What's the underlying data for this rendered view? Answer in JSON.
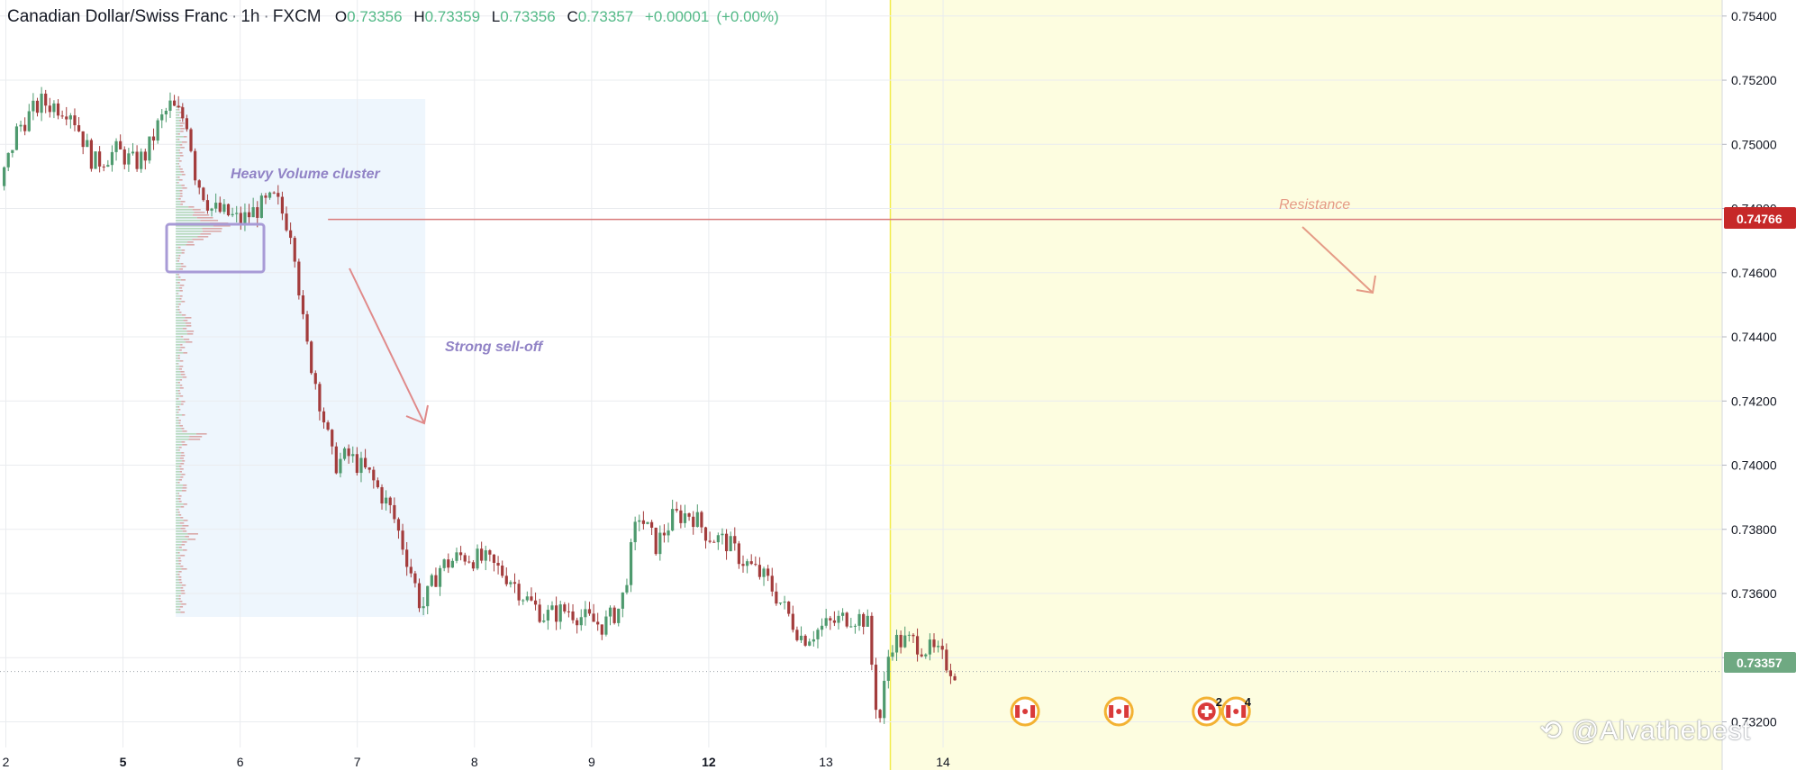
{
  "header": {
    "symbol": "Canadian Dollar/Swiss Franc",
    "interval": "1h",
    "exchange": "FXCM",
    "open_label": "O",
    "open": "0.73356",
    "high_label": "H",
    "high": "0.73359",
    "low_label": "L",
    "low": "0.73356",
    "close_label": "C",
    "close": "0.73357",
    "change": "+0.00001",
    "change_pct": "(+0.00%)"
  },
  "price_axis": {
    "ticks": [
      "0.75400",
      "0.75200",
      "0.75000",
      "0.74800",
      "0.74600",
      "0.74400",
      "0.74200",
      "0.74000",
      "0.73800",
      "0.73600",
      "0.73400",
      "0.73200"
    ],
    "resistance_badge": "0.74766",
    "last_badge": "0.73357"
  },
  "time_axis": {
    "ticks": [
      {
        "label": "2",
        "bold": false
      },
      {
        "label": "5",
        "bold": true
      },
      {
        "label": "6",
        "bold": false
      },
      {
        "label": "7",
        "bold": false
      },
      {
        "label": "8",
        "bold": false
      },
      {
        "label": "9",
        "bold": false
      },
      {
        "label": "12",
        "bold": true
      },
      {
        "label": "13",
        "bold": false
      },
      {
        "label": "14",
        "bold": false
      }
    ]
  },
  "annotations": {
    "volume_cluster": "Heavy Volume cluster",
    "sell_off": "Strong sell-off",
    "resistance": "Resistance",
    "event_count_a": "2",
    "event_count_b": "4"
  },
  "watermark": "@Alvathebest",
  "colors": {
    "up": "#4e9a6e",
    "down": "#a33c3c",
    "resistance_line": "#d97b7b",
    "resistance_badge": "#c62828",
    "last_badge": "#6fa982",
    "forecast_zone": "#fdfde0",
    "profile_zone": "#eef6fd",
    "note_text": "#9183c6",
    "resistance_text": "#e59b86",
    "event_ring": "#f3b233",
    "event_flag": "#d93a3a"
  },
  "chart_data": {
    "type": "candlestick",
    "symbol": "CAD/CHF",
    "interval": "1h",
    "y_range": [
      0.7312,
      0.7545
    ],
    "x_range": [
      1.95,
      16.65
    ],
    "x_ticks": [
      {
        "label": "2",
        "x": 2
      },
      {
        "label": "5",
        "x": 3
      },
      {
        "label": "6",
        "x": 4
      },
      {
        "label": "7",
        "x": 5
      },
      {
        "label": "8",
        "x": 6
      },
      {
        "label": "9",
        "x": 7
      },
      {
        "label": "12",
        "x": 8
      },
      {
        "label": "13",
        "x": 9
      },
      {
        "label": "14",
        "x": 10
      }
    ],
    "resistance_level": 0.74766,
    "last_price": 0.73357,
    "last_price_line": 0.73357,
    "forecast_zone_start_x": 9.55,
    "volume_profile_range": [
      3.45,
      5.58
    ],
    "price_path": [
      [
        1.95,
        0.7487
      ],
      [
        2.1,
        0.7505
      ],
      [
        2.3,
        0.7513
      ],
      [
        2.55,
        0.7511
      ],
      [
        2.75,
        0.7494
      ],
      [
        2.95,
        0.7498
      ],
      [
        3.1,
        0.7494
      ],
      [
        3.2,
        0.7497
      ],
      [
        3.3,
        0.7506
      ],
      [
        3.4,
        0.7512
      ],
      [
        3.55,
        0.7507
      ],
      [
        3.62,
        0.749
      ],
      [
        3.75,
        0.748
      ],
      [
        3.9,
        0.7478
      ],
      [
        4.0,
        0.7476
      ],
      [
        4.15,
        0.748
      ],
      [
        4.3,
        0.7483
      ],
      [
        4.45,
        0.7472
      ],
      [
        4.55,
        0.744
      ],
      [
        4.65,
        0.7425
      ],
      [
        4.8,
        0.74
      ],
      [
        4.92,
        0.7403
      ],
      [
        5.1,
        0.7397
      ],
      [
        5.22,
        0.739
      ],
      [
        5.3,
        0.7385
      ],
      [
        5.45,
        0.7368
      ],
      [
        5.55,
        0.7355
      ],
      [
        5.7,
        0.7368
      ],
      [
        5.9,
        0.7372
      ],
      [
        6.1,
        0.737
      ],
      [
        6.3,
        0.7365
      ],
      [
        6.45,
        0.7358
      ],
      [
        6.6,
        0.7353
      ],
      [
        6.8,
        0.7355
      ],
      [
        6.95,
        0.7352
      ],
      [
        7.1,
        0.735
      ],
      [
        7.25,
        0.7356
      ],
      [
        7.4,
        0.7385
      ],
      [
        7.55,
        0.7375
      ],
      [
        7.7,
        0.7384
      ],
      [
        7.85,
        0.7385
      ],
      [
        8.0,
        0.7378
      ],
      [
        8.15,
        0.7376
      ],
      [
        8.3,
        0.737
      ],
      [
        8.5,
        0.7364
      ],
      [
        8.65,
        0.7355
      ],
      [
        8.8,
        0.7346
      ],
      [
        9.0,
        0.735
      ],
      [
        9.2,
        0.7353
      ],
      [
        9.35,
        0.7352
      ],
      [
        9.45,
        0.7318
      ],
      [
        9.55,
        0.7345
      ],
      [
        9.75,
        0.7345
      ],
      [
        9.95,
        0.7341
      ],
      [
        10.1,
        0.73357
      ]
    ],
    "events": [
      {
        "x": 10.7,
        "type": "CAD"
      },
      {
        "x": 11.5,
        "type": "CAD"
      },
      {
        "x": 12.25,
        "type": "CHF"
      },
      {
        "x": 12.5,
        "type": "CAD"
      }
    ]
  }
}
